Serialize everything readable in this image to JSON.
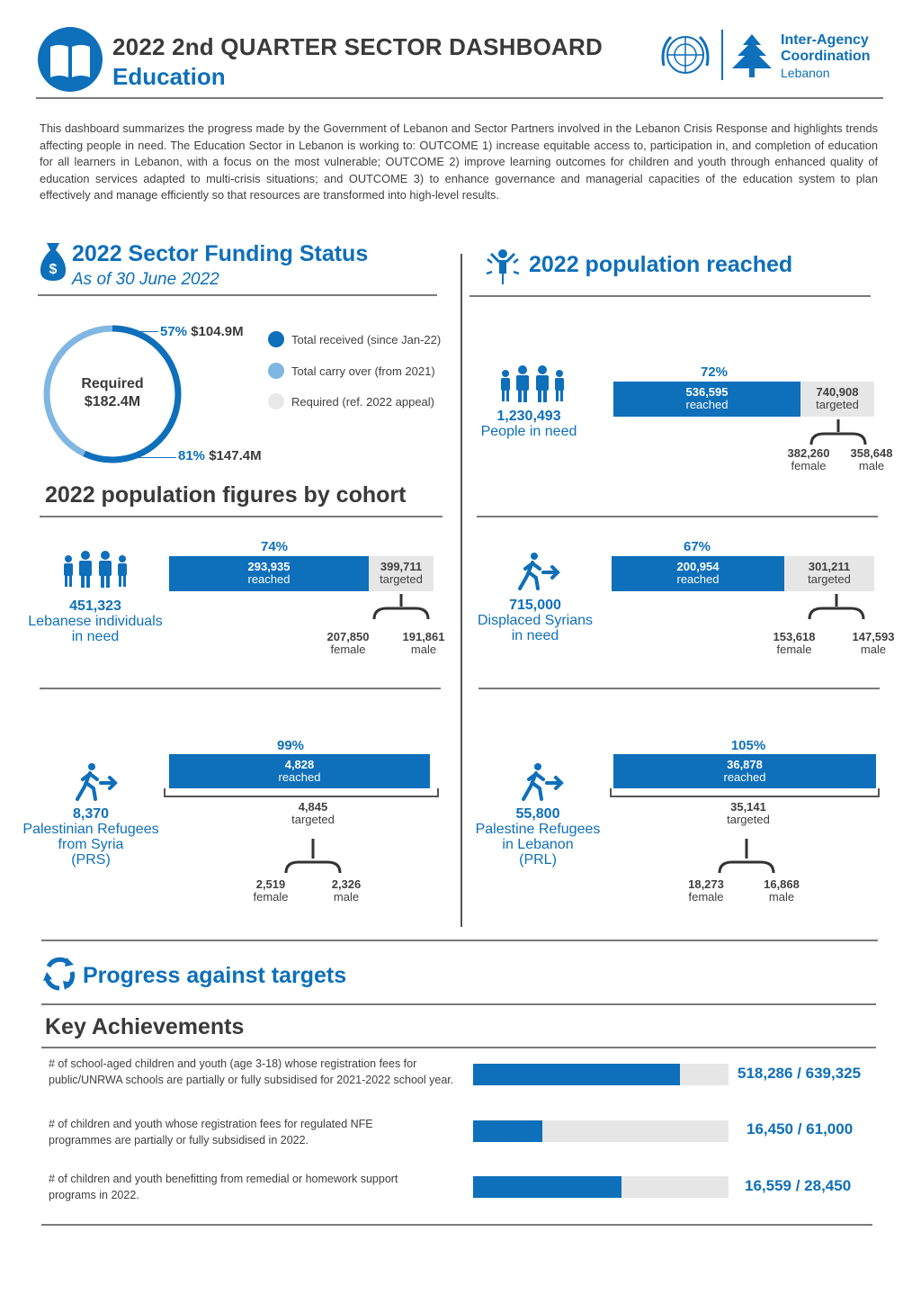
{
  "header": {
    "title": "2022 2nd QUARTER SECTOR DASHBOARD",
    "subtitle": "Education",
    "org_line1": "Inter-Agency",
    "org_line2": "Coordination",
    "org_line3": "Lebanon",
    "icons": [
      "book-icon",
      "un-emblem-icon",
      "cedar-tree-icon"
    ]
  },
  "intro": "This dashboard summarizes the progress made by the Government of Lebanon and Sector Partners involved in the Lebanon Crisis Response and highlights trends affecting people in need. The Education Sector in Lebanon is working to: OUTCOME 1) increase equitable access to, participation in, and completion of education for all learners in Lebanon, with a focus on the most vulnerable; OUTCOME 2) improve learning outcomes for children and youth through enhanced quality of education services adapted to multi-crisis situations; and OUTCOME 3) to enhance governance and managerial capacities of the education system to plan effectively and manage efficiently so that resources are transformed into high-level results.",
  "funding": {
    "title": "2022 Sector Funding Status",
    "subtitle": "As of 30 June 2022",
    "required_label": "Required",
    "required_value": "$182.4M",
    "received_pct": "57%",
    "received_value": "$104.9M",
    "carryover_pct": "81%",
    "carryover_value": "$147.4M",
    "received_fraction": 0.57,
    "carryover_fraction": 0.81,
    "legend": [
      {
        "label": "Total received (since Jan-22)",
        "color": "#0e6fba"
      },
      {
        "label": "Total carry over (from 2021)",
        "color": "#7fb6e3"
      },
      {
        "label": "Required (ref. 2022 appeal)",
        "color": "#e8e8e8"
      }
    ]
  },
  "reached": {
    "title": "2022 population reached",
    "people_in_need_value": "1,230,493",
    "people_in_need_label": "People in need",
    "pct": "72%",
    "reached_value": "536,595",
    "reached_label": "reached",
    "targeted_value": "740,908",
    "targeted_label": "targeted",
    "female_value": "382,260",
    "female_label": "female",
    "male_value": "358,648",
    "male_label": "male"
  },
  "cohort_title": "2022 population figures by cohort",
  "cohorts": {
    "lebanese": {
      "need_value": "451,323",
      "need_l1": "Lebanese individuals",
      "need_l2": "in need",
      "pct": "74%",
      "reached_value": "293,935",
      "reached_label": "reached",
      "targeted_value": "399,711",
      "targeted_label": "targeted",
      "female_value": "207,850",
      "female_label": "female",
      "male_value": "191,861",
      "male_label": "male"
    },
    "syrians": {
      "need_value": "715,000",
      "need_l1": "Displaced Syrians",
      "need_l2": "in need",
      "pct": "67%",
      "reached_value": "200,954",
      "reached_label": "reached",
      "targeted_value": "301,211",
      "targeted_label": "targeted",
      "female_value": "153,618",
      "female_label": "female",
      "male_value": "147,593",
      "male_label": "male"
    },
    "prs": {
      "need_value": "8,370",
      "need_l1": "Palestinian Refugees",
      "need_l2": "from Syria",
      "need_l3": "(PRS)",
      "pct": "99%",
      "reached_value": "4,828",
      "reached_label": "reached",
      "targeted_value": "4,845",
      "targeted_label": "targeted",
      "female_value": "2,519",
      "female_label": "female",
      "male_value": "2,326",
      "male_label": "male"
    },
    "prl": {
      "need_value": "55,800",
      "need_l1": "Palestine Refugees",
      "need_l2": "in Lebanon",
      "need_l3": "(PRL)",
      "pct": "105%",
      "reached_value": "36,878",
      "reached_label": "reached",
      "targeted_value": "35,141",
      "targeted_label": "targeted",
      "female_value": "18,273",
      "female_label": "female",
      "male_value": "16,868",
      "male_label": "male"
    }
  },
  "progress": {
    "title": "Progress against targets",
    "key_title": "Key Achievements",
    "items": [
      {
        "text": "# of school-aged children and youth (age 3-18) whose registration fees for public/UNRWA schools are partially or fully subsidised for 2021-2022 school year.",
        "value": "518,286 / 639,325",
        "fraction": 0.81
      },
      {
        "text": "# of children and youth whose registration fees for regulated NFE programmes are partially or fully subsidised in 2022.",
        "value": "16,450 / 61,000",
        "fraction": 0.27
      },
      {
        "text": "# of children and youth benefitting from remedial or homework support programs in 2022.",
        "value": "16,559 / 28,450",
        "fraction": 0.58
      }
    ]
  }
}
